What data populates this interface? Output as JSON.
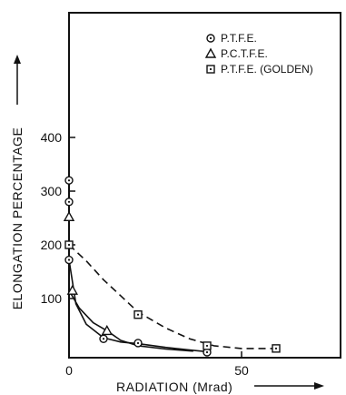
{
  "chart_data": {
    "type": "scatter",
    "xlabel": "RADIATION (Mrad)",
    "ylabel": "ELONGATION PERCENTAGE",
    "xlim": [
      0,
      80
    ],
    "ylim": [
      0,
      500
    ],
    "xticks": [
      0,
      50
    ],
    "yticks": [
      100,
      200,
      300,
      400
    ],
    "legend_position": "top-right",
    "grid": false,
    "series": [
      {
        "name": "P.T.F.E.",
        "marker": "circle-dot",
        "points": [
          [
            0,
            320
          ],
          [
            0,
            280
          ],
          [
            0,
            172
          ],
          [
            10,
            25
          ],
          [
            20,
            17
          ],
          [
            40,
            0
          ]
        ],
        "curve": [
          [
            0,
            172
          ],
          [
            2,
            90
          ],
          [
            5,
            52
          ],
          [
            10,
            27
          ],
          [
            15,
            19
          ],
          [
            20,
            16
          ],
          [
            28,
            9
          ],
          [
            35,
            4
          ],
          [
            40,
            1
          ]
        ],
        "line_style": "solid"
      },
      {
        "name": "P.C.T.F.E.",
        "marker": "triangle",
        "points": [
          [
            0,
            252
          ],
          [
            1,
            115
          ],
          [
            11,
            40
          ]
        ],
        "curve": [
          [
            0,
            115
          ],
          [
            3,
            82
          ],
          [
            7,
            55
          ],
          [
            11,
            40
          ],
          [
            15,
            22
          ],
          [
            20,
            12
          ],
          [
            28,
            6
          ],
          [
            36,
            2
          ]
        ],
        "line_style": "solid"
      },
      {
        "name": "P.T.F.E. (GOLDEN)",
        "marker": "square-dot",
        "points": [
          [
            0,
            200
          ],
          [
            20,
            70
          ],
          [
            40,
            12
          ],
          [
            60,
            7
          ]
        ],
        "curve": [
          [
            0,
            200
          ],
          [
            5,
            170
          ],
          [
            10,
            135
          ],
          [
            15,
            105
          ],
          [
            20,
            75
          ],
          [
            28,
            45
          ],
          [
            35,
            25
          ],
          [
            42,
            12
          ],
          [
            50,
            7
          ],
          [
            60,
            7
          ]
        ],
        "line_style": "dashed"
      }
    ]
  }
}
